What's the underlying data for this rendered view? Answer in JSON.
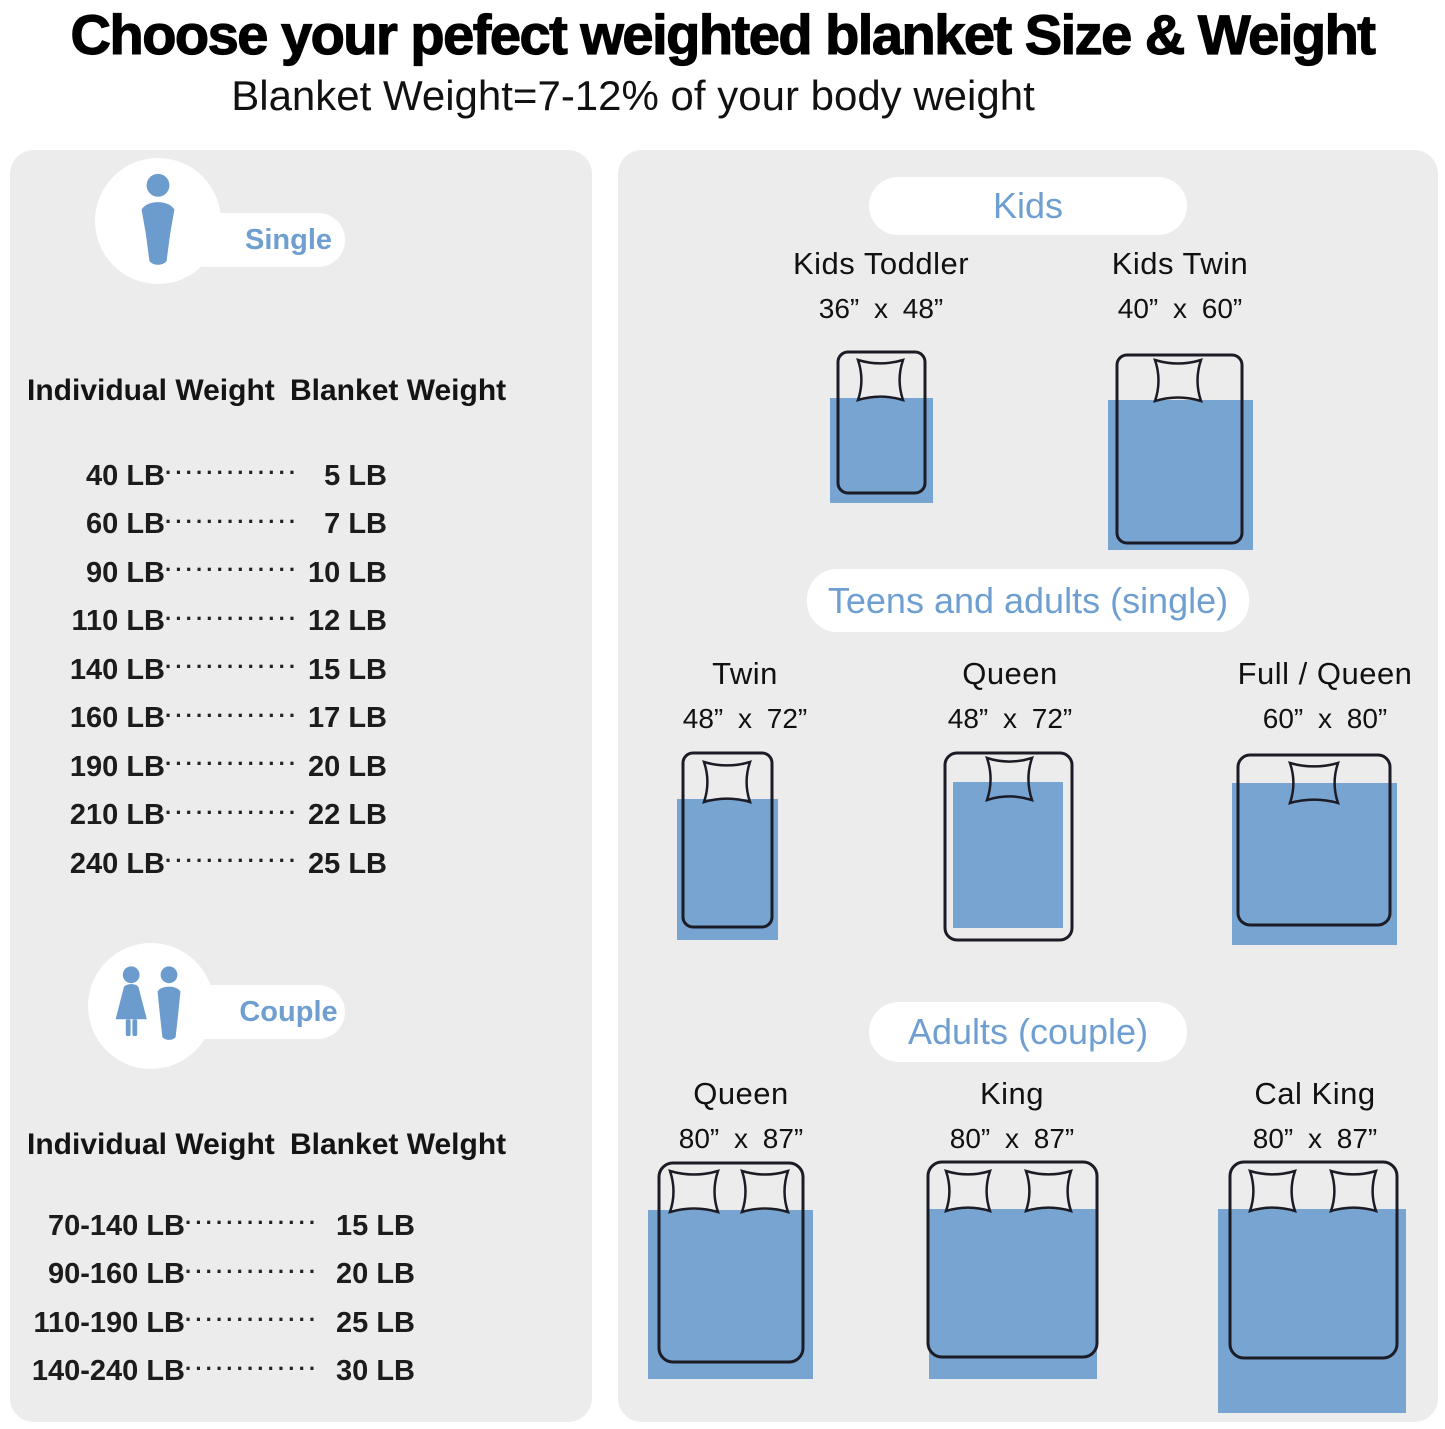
{
  "header": {
    "title": "Choose your pefect weighted blanket Size & Weight",
    "subtitle": "Blanket Weight=7-12% of your body weight"
  },
  "colors": {
    "panel_bg": "#ececec",
    "blanket_blue": "#78a4d2",
    "outline_dark": "#1c1c26",
    "accent_blue": "#6f9fd0",
    "icon_blue": "#6b9ccd"
  },
  "leader_dots": "·············",
  "single": {
    "label": "Single",
    "headers": [
      "Individual Weight",
      "Blanket Weight"
    ],
    "rows": [
      [
        "40 LB",
        "5 LB"
      ],
      [
        "60 LB",
        "7 LB"
      ],
      [
        "90 LB",
        "10 LB"
      ],
      [
        "110 LB",
        "12 LB"
      ],
      [
        "140 LB",
        "15 LB"
      ],
      [
        "160 LB",
        "17 LB"
      ],
      [
        "190 LB",
        "20 LB"
      ],
      [
        "210 LB",
        "22 LB"
      ],
      [
        "240 LB",
        "25 LB"
      ]
    ]
  },
  "couple": {
    "label": "Couple",
    "headers": [
      "Individual Weight",
      "Blanket Welght"
    ],
    "rows": [
      [
        "70-140 LB",
        "15 LB"
      ],
      [
        "90-160 LB",
        "20 LB"
      ],
      [
        "110-190 LB",
        "25 LB"
      ],
      [
        "140-240 LB",
        "30 LB"
      ]
    ]
  },
  "size_sections": {
    "kids": {
      "header": "Kids"
    },
    "teens": {
      "header": "Teens and adults (single)"
    },
    "adults": {
      "header": "Adults (couple)"
    }
  },
  "beds": {
    "kids_toddler": {
      "name": "Kids Toddler",
      "size": "36” x 48”"
    },
    "kids_twin": {
      "name": "Kids Twin",
      "size": "40” x 60”"
    },
    "twin": {
      "name": "Twin",
      "size": "48” x 72”"
    },
    "queen_single": {
      "name": "Queen",
      "size": "48” x 72”"
    },
    "full_queen": {
      "name": "Full / Queen",
      "size": "60” x 80”"
    },
    "queen_couple": {
      "name": "Queen",
      "size": "80” x 87”"
    },
    "king": {
      "name": "King",
      "size": "80” x 87”"
    },
    "cal_king": {
      "name": "Cal King",
      "size": "80” x 87”"
    }
  }
}
